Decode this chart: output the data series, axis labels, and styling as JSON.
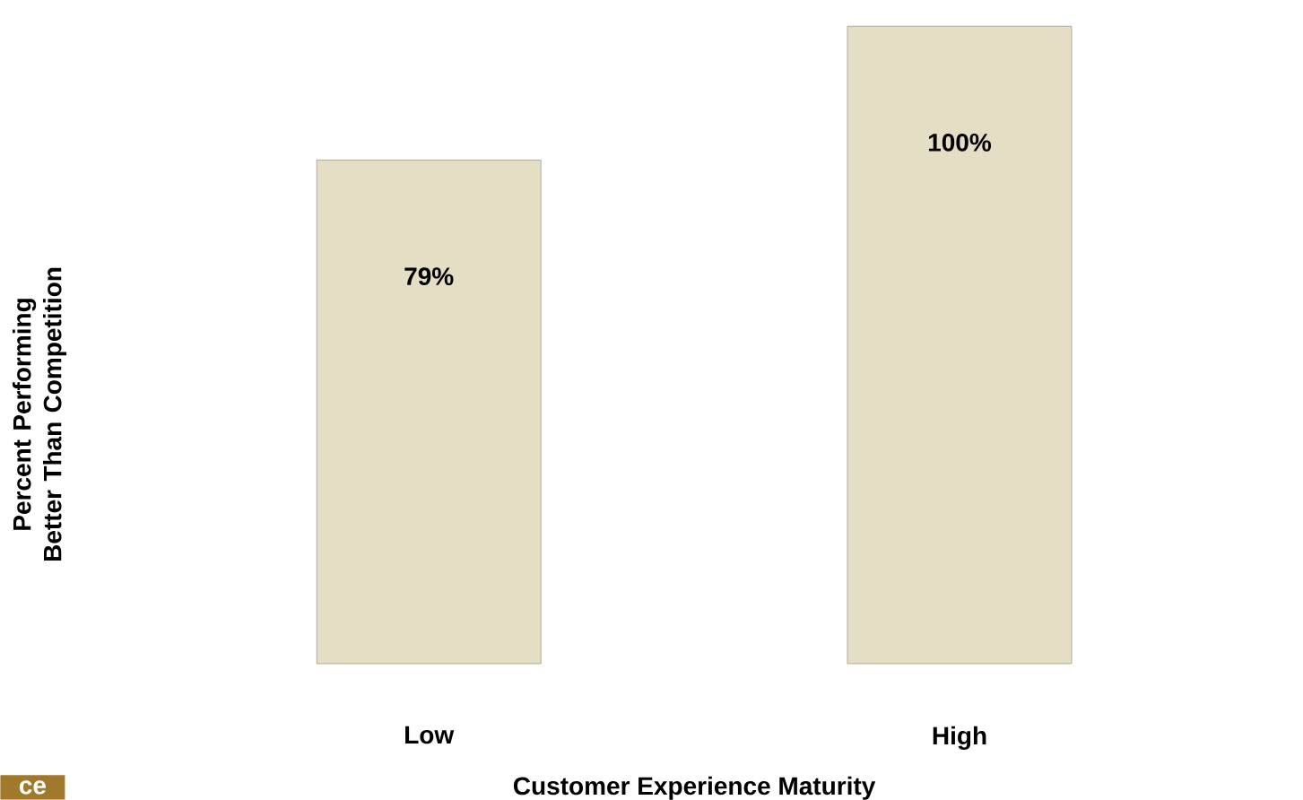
{
  "chart_data": {
    "type": "bar",
    "xlabel": "Customer Experience Maturity",
    "ylabel": "Percent Performing Better Than Competition",
    "categories": [
      "Low",
      "High"
    ],
    "values": [
      79,
      100
    ],
    "value_labels": [
      "79%",
      "100%"
    ],
    "color": "#e4dfc4",
    "annotations": [
      "ce"
    ]
  }
}
